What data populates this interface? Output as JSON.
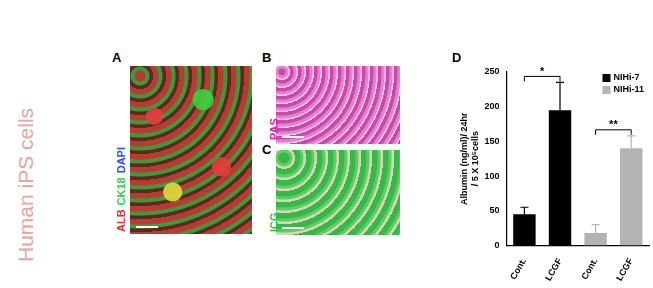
{
  "figure": {
    "side_label": "Human iPS cells",
    "panels": [
      {
        "letter": "A",
        "stains": [
          {
            "text": "ALB",
            "color": "#e03030"
          },
          {
            "text": "CK18",
            "color": "#2ecc40"
          },
          {
            "text": "DAPI",
            "color": "#3050ff"
          }
        ]
      },
      {
        "letter": "B",
        "stains": [
          {
            "text": "PAS",
            "color": "#e020c0"
          }
        ]
      },
      {
        "letter": "C",
        "stains": [
          {
            "text": "ICG",
            "color": "#22c444"
          }
        ]
      }
    ]
  },
  "chart_data": {
    "panel": "D",
    "type": "bar",
    "categories": [
      "Cont.",
      "LCGF",
      "Cont.",
      "LCGF"
    ],
    "y_label": [
      "Albumin (ng/ml)/ 24hr",
      "/ 5 X 10⁵cells"
    ],
    "ylim": [
      0,
      250
    ],
    "yticks": [
      0,
      50,
      100,
      150,
      200,
      250
    ],
    "grid": false,
    "legend": "upper right",
    "series": [
      {
        "name": "NIHi-7",
        "color": "#000000",
        "values": [
          45,
          195,
          null,
          null
        ],
        "errors": [
          10,
          40,
          null,
          null
        ]
      },
      {
        "name": "NIHi-11",
        "color": "#b3b3b3",
        "values": [
          null,
          null,
          18,
          140
        ],
        "errors": [
          null,
          null,
          12,
          18
        ]
      }
    ],
    "annotations": [
      "*",
      "**"
    ]
  }
}
